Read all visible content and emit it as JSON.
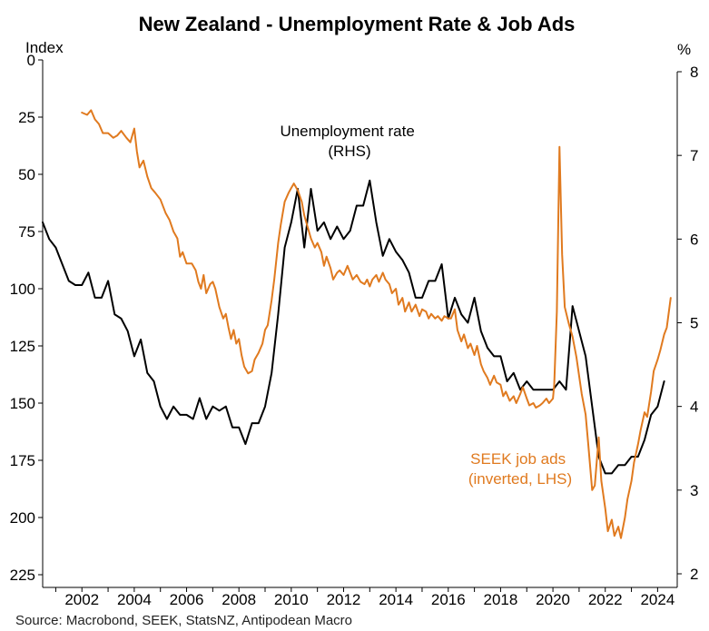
{
  "chart_data": {
    "type": "line",
    "title": "New Zealand - Unemployment Rate & Job Ads",
    "source": "Source: Macrobond, SEEK, StatsNZ, Antipodean Macro",
    "left_axis": {
      "unit_label": "Index",
      "inverted": true,
      "ylim": [
        0,
        225
      ],
      "ticks": [
        "0",
        "25",
        "50",
        "75",
        "100",
        "125",
        "150",
        "175",
        "200",
        "225"
      ]
    },
    "right_axis": {
      "unit_label": "%",
      "ylim": [
        2,
        8
      ],
      "ticks": [
        "2",
        "3",
        "4",
        "5",
        "6",
        "7",
        "8"
      ]
    },
    "x_axis": {
      "xlim": [
        2000.5,
        2024.75
      ],
      "ticks": [
        "2002",
        "2004",
        "2006",
        "2008",
        "2010",
        "2012",
        "2014",
        "2016",
        "2018",
        "2020",
        "2022",
        "2024"
      ]
    },
    "grid": false,
    "annotations": [
      {
        "lines": [
          "Unemployment rate",
          "(RHS)"
        ],
        "series": "unemployment"
      },
      {
        "lines": [
          "SEEK job ads",
          "(inverted, LHS)"
        ],
        "series": "seek"
      }
    ],
    "colors": {
      "unemployment": "#000000",
      "seek": "#E07A1F"
    },
    "series": [
      {
        "id": "unemployment",
        "axis": "right",
        "points": [
          [
            2000.5,
            6.2
          ],
          [
            2000.75,
            6.0
          ],
          [
            2001.0,
            5.9
          ],
          [
            2001.25,
            5.7
          ],
          [
            2001.5,
            5.5
          ],
          [
            2001.75,
            5.45
          ],
          [
            2002.0,
            5.45
          ],
          [
            2002.25,
            5.6
          ],
          [
            2002.5,
            5.3
          ],
          [
            2002.75,
            5.3
          ],
          [
            2003.0,
            5.5
          ],
          [
            2003.25,
            5.1
          ],
          [
            2003.5,
            5.05
          ],
          [
            2003.75,
            4.9
          ],
          [
            2004.0,
            4.6
          ],
          [
            2004.25,
            4.8
          ],
          [
            2004.5,
            4.4
          ],
          [
            2004.75,
            4.3
          ],
          [
            2005.0,
            4.0
          ],
          [
            2005.25,
            3.85
          ],
          [
            2005.5,
            4.0
          ],
          [
            2005.75,
            3.9
          ],
          [
            2006.0,
            3.9
          ],
          [
            2006.25,
            3.85
          ],
          [
            2006.5,
            4.1
          ],
          [
            2006.75,
            3.85
          ],
          [
            2007.0,
            4.0
          ],
          [
            2007.25,
            3.95
          ],
          [
            2007.5,
            4.0
          ],
          [
            2007.75,
            3.75
          ],
          [
            2008.0,
            3.75
          ],
          [
            2008.25,
            3.55
          ],
          [
            2008.5,
            3.8
          ],
          [
            2008.75,
            3.8
          ],
          [
            2009.0,
            4.0
          ],
          [
            2009.25,
            4.4
          ],
          [
            2009.5,
            5.1
          ],
          [
            2009.75,
            5.9
          ],
          [
            2010.0,
            6.2
          ],
          [
            2010.25,
            6.6
          ],
          [
            2010.5,
            5.9
          ],
          [
            2010.75,
            6.6
          ],
          [
            2011.0,
            6.1
          ],
          [
            2011.25,
            6.2
          ],
          [
            2011.5,
            6.0
          ],
          [
            2011.75,
            6.15
          ],
          [
            2012.0,
            6.0
          ],
          [
            2012.25,
            6.1
          ],
          [
            2012.5,
            6.4
          ],
          [
            2012.75,
            6.4
          ],
          [
            2013.0,
            6.7
          ],
          [
            2013.25,
            6.2
          ],
          [
            2013.5,
            5.8
          ],
          [
            2013.75,
            6.0
          ],
          [
            2014.0,
            5.85
          ],
          [
            2014.25,
            5.75
          ],
          [
            2014.5,
            5.6
          ],
          [
            2014.75,
            5.3
          ],
          [
            2015.0,
            5.3
          ],
          [
            2015.25,
            5.5
          ],
          [
            2015.5,
            5.5
          ],
          [
            2015.75,
            5.7
          ],
          [
            2016.0,
            5.05
          ],
          [
            2016.25,
            5.3
          ],
          [
            2016.5,
            5.1
          ],
          [
            2016.75,
            5.0
          ],
          [
            2017.0,
            5.3
          ],
          [
            2017.25,
            4.9
          ],
          [
            2017.5,
            4.7
          ],
          [
            2017.75,
            4.6
          ],
          [
            2018.0,
            4.6
          ],
          [
            2018.25,
            4.3
          ],
          [
            2018.5,
            4.4
          ],
          [
            2018.75,
            4.2
          ],
          [
            2019.0,
            4.3
          ],
          [
            2019.25,
            4.2
          ],
          [
            2019.5,
            4.2
          ],
          [
            2019.75,
            4.2
          ],
          [
            2020.0,
            4.2
          ],
          [
            2020.25,
            4.3
          ],
          [
            2020.5,
            4.2
          ],
          [
            2020.75,
            5.2
          ],
          [
            2021.0,
            4.9
          ],
          [
            2021.25,
            4.6
          ],
          [
            2021.5,
            4.0
          ],
          [
            2021.75,
            3.4
          ],
          [
            2022.0,
            3.2
          ],
          [
            2022.25,
            3.2
          ],
          [
            2022.5,
            3.3
          ],
          [
            2022.75,
            3.3
          ],
          [
            2023.0,
            3.4
          ],
          [
            2023.25,
            3.4
          ],
          [
            2023.5,
            3.6
          ],
          [
            2023.75,
            3.9
          ],
          [
            2024.0,
            4.0
          ],
          [
            2024.25,
            4.3
          ]
        ]
      },
      {
        "id": "seek",
        "axis": "left",
        "points": [
          [
            2002.0,
            23
          ],
          [
            2002.2,
            24
          ],
          [
            2002.35,
            22
          ],
          [
            2002.5,
            26
          ],
          [
            2002.65,
            28
          ],
          [
            2002.8,
            32
          ],
          [
            2003.0,
            32
          ],
          [
            2003.2,
            34
          ],
          [
            2003.35,
            33
          ],
          [
            2003.5,
            31
          ],
          [
            2003.7,
            34
          ],
          [
            2003.85,
            36
          ],
          [
            2004.0,
            30
          ],
          [
            2004.1,
            40
          ],
          [
            2004.2,
            47
          ],
          [
            2004.35,
            44
          ],
          [
            2004.5,
            51
          ],
          [
            2004.65,
            56
          ],
          [
            2004.8,
            58
          ],
          [
            2005.0,
            61
          ],
          [
            2005.2,
            67
          ],
          [
            2005.35,
            70
          ],
          [
            2005.5,
            75
          ],
          [
            2005.65,
            78
          ],
          [
            2005.75,
            86
          ],
          [
            2005.85,
            84
          ],
          [
            2006.0,
            89
          ],
          [
            2006.2,
            89
          ],
          [
            2006.35,
            92
          ],
          [
            2006.45,
            97
          ],
          [
            2006.55,
            100
          ],
          [
            2006.65,
            94
          ],
          [
            2006.75,
            102
          ],
          [
            2006.9,
            98
          ],
          [
            2007.0,
            97
          ],
          [
            2007.1,
            100
          ],
          [
            2007.25,
            108
          ],
          [
            2007.4,
            113
          ],
          [
            2007.5,
            111
          ],
          [
            2007.6,
            117
          ],
          [
            2007.7,
            122
          ],
          [
            2007.8,
            118
          ],
          [
            2007.9,
            124
          ],
          [
            2008.0,
            122
          ],
          [
            2008.1,
            129
          ],
          [
            2008.2,
            134
          ],
          [
            2008.35,
            137
          ],
          [
            2008.5,
            136
          ],
          [
            2008.6,
            131
          ],
          [
            2008.75,
            128
          ],
          [
            2008.9,
            124
          ],
          [
            2009.0,
            118
          ],
          [
            2009.1,
            116
          ],
          [
            2009.25,
            105
          ],
          [
            2009.35,
            96
          ],
          [
            2009.5,
            80
          ],
          [
            2009.6,
            72
          ],
          [
            2009.75,
            62
          ],
          [
            2009.9,
            58
          ],
          [
            2010.0,
            56
          ],
          [
            2010.1,
            54
          ],
          [
            2010.25,
            57
          ],
          [
            2010.4,
            62
          ],
          [
            2010.5,
            68
          ],
          [
            2010.65,
            74
          ],
          [
            2010.75,
            78
          ],
          [
            2010.9,
            82
          ],
          [
            2011.0,
            80
          ],
          [
            2011.15,
            84
          ],
          [
            2011.25,
            90
          ],
          [
            2011.35,
            86
          ],
          [
            2011.5,
            91
          ],
          [
            2011.6,
            96
          ],
          [
            2011.75,
            93
          ],
          [
            2011.85,
            92
          ],
          [
            2012.0,
            94
          ],
          [
            2012.15,
            90
          ],
          [
            2012.25,
            93
          ],
          [
            2012.35,
            96
          ],
          [
            2012.5,
            94
          ],
          [
            2012.65,
            97
          ],
          [
            2012.8,
            98
          ],
          [
            2012.9,
            96
          ],
          [
            2013.0,
            99
          ],
          [
            2013.1,
            96
          ],
          [
            2013.25,
            94
          ],
          [
            2013.35,
            97
          ],
          [
            2013.5,
            93
          ],
          [
            2013.6,
            96
          ],
          [
            2013.75,
            98
          ],
          [
            2013.85,
            102
          ],
          [
            2014.0,
            100
          ],
          [
            2014.1,
            107
          ],
          [
            2014.25,
            104
          ],
          [
            2014.35,
            110
          ],
          [
            2014.5,
            106
          ],
          [
            2014.6,
            110
          ],
          [
            2014.75,
            107
          ],
          [
            2014.9,
            112
          ],
          [
            2015.0,
            109
          ],
          [
            2015.15,
            110
          ],
          [
            2015.25,
            113
          ],
          [
            2015.35,
            111
          ],
          [
            2015.5,
            113
          ],
          [
            2015.6,
            112
          ],
          [
            2015.75,
            114
          ],
          [
            2015.85,
            112
          ],
          [
            2016.0,
            113
          ],
          [
            2016.1,
            113
          ],
          [
            2016.25,
            109
          ],
          [
            2016.35,
            118
          ],
          [
            2016.5,
            123
          ],
          [
            2016.6,
            120
          ],
          [
            2016.75,
            126
          ],
          [
            2016.85,
            124
          ],
          [
            2017.0,
            129
          ],
          [
            2017.1,
            125
          ],
          [
            2017.25,
            133
          ],
          [
            2017.35,
            136
          ],
          [
            2017.5,
            139
          ],
          [
            2017.6,
            142
          ],
          [
            2017.75,
            138
          ],
          [
            2017.85,
            141
          ],
          [
            2018.0,
            142
          ],
          [
            2018.1,
            147
          ],
          [
            2018.2,
            145
          ],
          [
            2018.35,
            149
          ],
          [
            2018.5,
            147
          ],
          [
            2018.6,
            150
          ],
          [
            2018.75,
            146
          ],
          [
            2018.85,
            143
          ],
          [
            2019.0,
            148
          ],
          [
            2019.1,
            151
          ],
          [
            2019.25,
            150
          ],
          [
            2019.35,
            152
          ],
          [
            2019.5,
            151
          ],
          [
            2019.6,
            150
          ],
          [
            2019.75,
            148
          ],
          [
            2019.85,
            150
          ],
          [
            2020.0,
            148
          ],
          [
            2020.05,
            142
          ],
          [
            2020.15,
            110
          ],
          [
            2020.25,
            38
          ],
          [
            2020.35,
            85
          ],
          [
            2020.45,
            108
          ],
          [
            2020.6,
            115
          ],
          [
            2020.75,
            121
          ],
          [
            2020.9,
            130
          ],
          [
            2021.0,
            138
          ],
          [
            2021.1,
            146
          ],
          [
            2021.25,
            155
          ],
          [
            2021.35,
            168
          ],
          [
            2021.5,
            188
          ],
          [
            2021.6,
            186
          ],
          [
            2021.75,
            165
          ],
          [
            2021.85,
            184
          ],
          [
            2022.0,
            196
          ],
          [
            2022.1,
            206
          ],
          [
            2022.25,
            201
          ],
          [
            2022.35,
            208
          ],
          [
            2022.5,
            204
          ],
          [
            2022.6,
            209
          ],
          [
            2022.75,
            200
          ],
          [
            2022.85,
            192
          ],
          [
            2023.0,
            184
          ],
          [
            2023.1,
            176
          ],
          [
            2023.25,
            168
          ],
          [
            2023.35,
            162
          ],
          [
            2023.5,
            154
          ],
          [
            2023.6,
            156
          ],
          [
            2023.75,
            145
          ],
          [
            2023.85,
            136
          ],
          [
            2024.0,
            131
          ],
          [
            2024.1,
            127
          ],
          [
            2024.25,
            120
          ],
          [
            2024.35,
            117
          ],
          [
            2024.5,
            104
          ]
        ]
      }
    ]
  }
}
